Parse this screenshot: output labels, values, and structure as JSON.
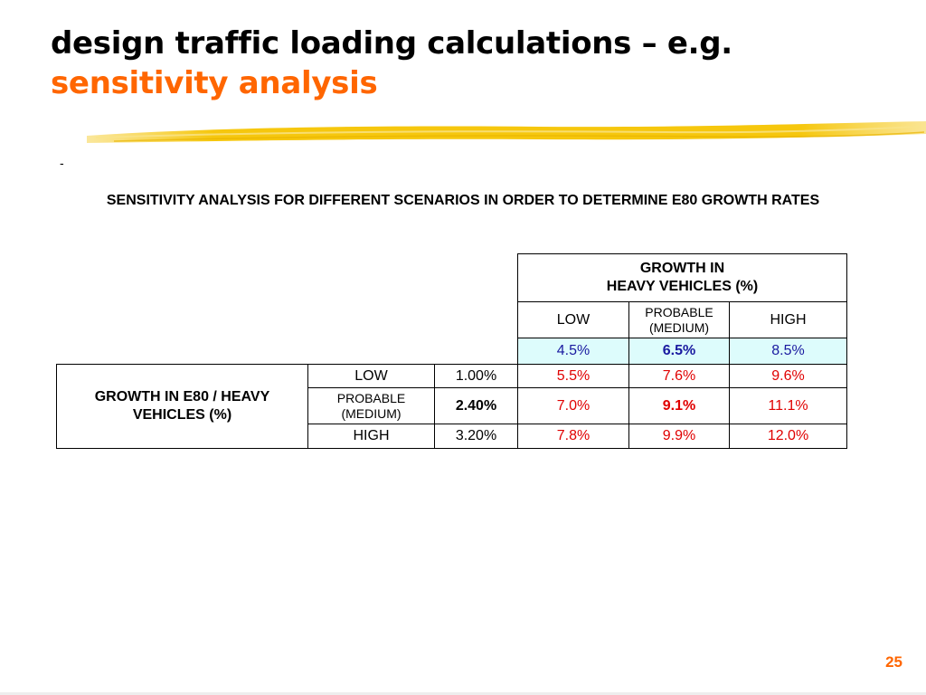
{
  "slide": {
    "title_line1": "design traffic loading calculations – e.g.",
    "title_line2": "sensitivity analysis",
    "bullet_mark": "-",
    "page_number": "25",
    "accent_color": "#ff6600",
    "highlight_color": "#f5c400"
  },
  "table": {
    "heading": "SENSITIVITY ANALYSIS FOR DIFFERENT SCENARIOS IN ORDER TO DETERMINE E80 GROWTH RATES",
    "col_group_header_line1": "GROWTH IN",
    "col_group_header_line2": "HEAVY VEHICLES (%)",
    "row_group_header_line1": "GROWTH IN E80 / HEAVY",
    "row_group_header_line2": "VEHICLES (%)",
    "col_labels": {
      "low": "LOW",
      "probable_line1": "PROBABLE",
      "probable_line2": "(MEDIUM)",
      "high": "HIGH"
    },
    "col_rates": {
      "low": "4.5%",
      "probable": "6.5%",
      "high": "8.5%"
    },
    "rows": [
      {
        "label": "LOW",
        "rate": "1.00%",
        "values": [
          "5.5%",
          "7.6%",
          "9.6%"
        ]
      },
      {
        "label_line1": "PROBABLE",
        "label_line2": "(MEDIUM)",
        "rate": "2.40%",
        "values": [
          "7.0%",
          "9.1%",
          "11.1%"
        ]
      },
      {
        "label": "HIGH",
        "rate": "3.20%",
        "values": [
          "7.8%",
          "9.9%",
          "12.0%"
        ]
      }
    ]
  }
}
